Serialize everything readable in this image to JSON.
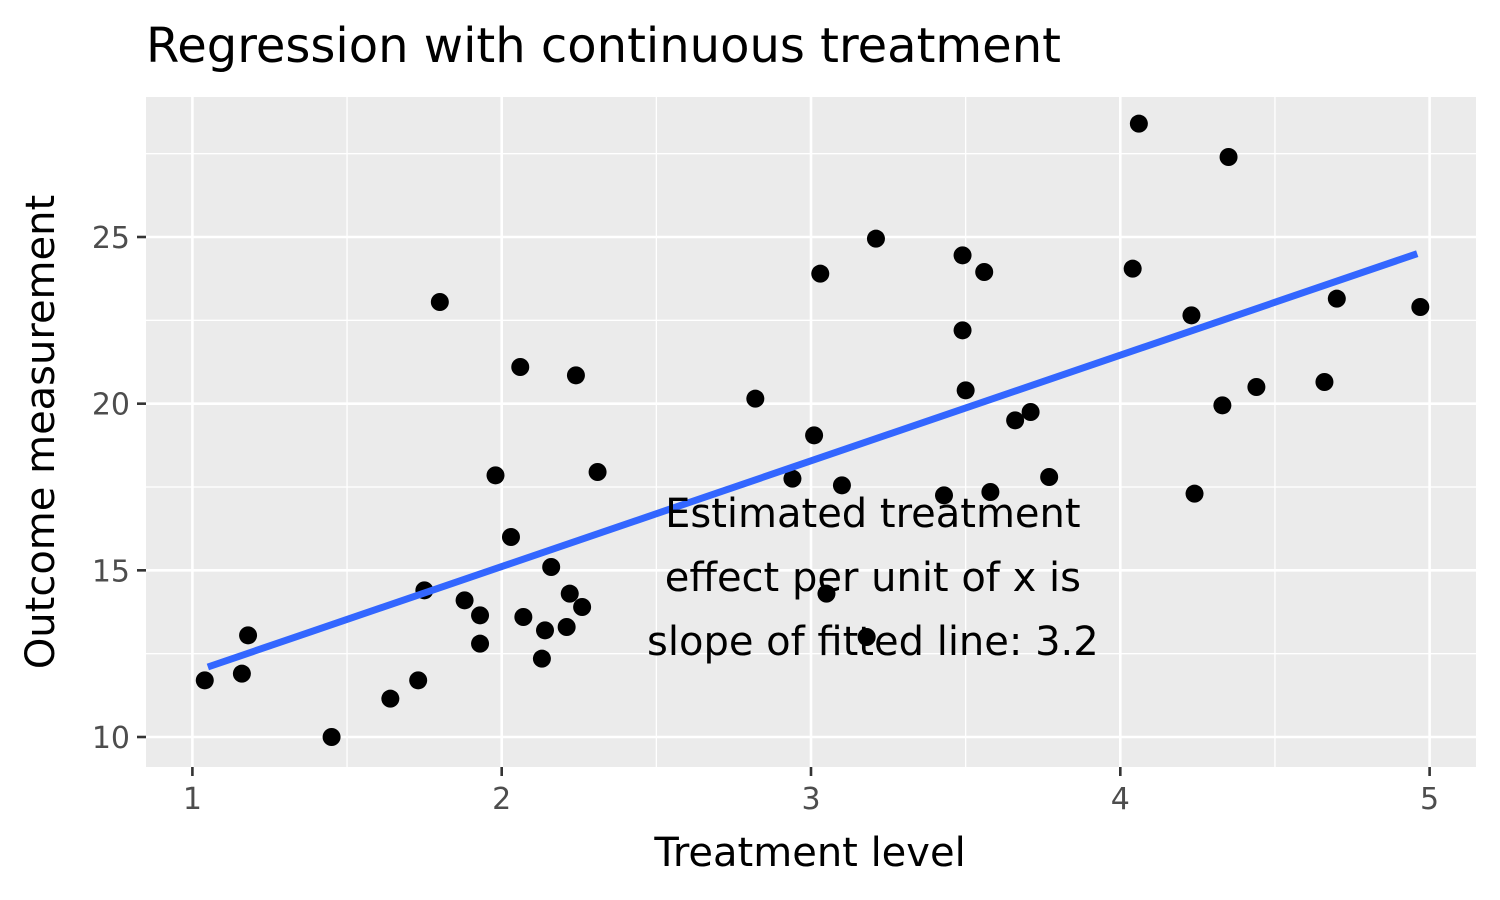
{
  "chart_data": {
    "type": "scatter",
    "title": "Regression with continuous treatment",
    "xlabel": "Treatment level",
    "ylabel": "Outcome measurement",
    "xlim": [
      0.85,
      5.15
    ],
    "ylim": [
      9.1,
      29.2
    ],
    "x_ticks": [
      1,
      2,
      3,
      4,
      5
    ],
    "y_ticks": [
      10,
      15,
      20,
      25
    ],
    "x_minor": [
      1.5,
      2.5,
      3.5,
      4.5
    ],
    "y_minor": [
      12.5,
      17.5,
      22.5,
      27.5
    ],
    "grid": true,
    "annotation_lines": [
      "Estimated treatment",
      "effect per unit of x is",
      "slope of fitted line:  3.2"
    ],
    "annotation_at": {
      "x": 3.2,
      "y": 14.8
    },
    "fit_line": {
      "x": [
        1.05,
        4.96
      ],
      "y": [
        12.1,
        24.5
      ],
      "color": "#3366ff"
    },
    "point_color": "#000000",
    "panel_color": "#ebebeb",
    "points": [
      {
        "x": 1.04,
        "y": 11.7
      },
      {
        "x": 1.16,
        "y": 11.9
      },
      {
        "x": 1.18,
        "y": 13.05
      },
      {
        "x": 1.45,
        "y": 10.0
      },
      {
        "x": 1.64,
        "y": 11.15
      },
      {
        "x": 1.73,
        "y": 11.7
      },
      {
        "x": 1.75,
        "y": 14.4
      },
      {
        "x": 1.8,
        "y": 23.05
      },
      {
        "x": 1.88,
        "y": 14.1
      },
      {
        "x": 1.93,
        "y": 12.8
      },
      {
        "x": 1.93,
        "y": 13.65
      },
      {
        "x": 1.98,
        "y": 17.85
      },
      {
        "x": 2.03,
        "y": 16.0
      },
      {
        "x": 2.06,
        "y": 21.1
      },
      {
        "x": 2.07,
        "y": 13.6
      },
      {
        "x": 2.13,
        "y": 12.35
      },
      {
        "x": 2.14,
        "y": 13.2
      },
      {
        "x": 2.16,
        "y": 15.1
      },
      {
        "x": 2.21,
        "y": 13.3
      },
      {
        "x": 2.22,
        "y": 14.3
      },
      {
        "x": 2.24,
        "y": 20.85
      },
      {
        "x": 2.26,
        "y": 13.9
      },
      {
        "x": 2.31,
        "y": 17.95
      },
      {
        "x": 2.82,
        "y": 20.15
      },
      {
        "x": 2.94,
        "y": 17.75
      },
      {
        "x": 3.01,
        "y": 19.05
      },
      {
        "x": 3.03,
        "y": 23.9
      },
      {
        "x": 3.05,
        "y": 14.3
      },
      {
        "x": 3.1,
        "y": 17.55
      },
      {
        "x": 3.18,
        "y": 13.0
      },
      {
        "x": 3.21,
        "y": 24.95
      },
      {
        "x": 3.43,
        "y": 17.25
      },
      {
        "x": 3.49,
        "y": 24.45
      },
      {
        "x": 3.49,
        "y": 22.2
      },
      {
        "x": 3.5,
        "y": 20.4
      },
      {
        "x": 3.56,
        "y": 23.95
      },
      {
        "x": 3.58,
        "y": 17.35
      },
      {
        "x": 3.66,
        "y": 19.5
      },
      {
        "x": 3.71,
        "y": 19.75
      },
      {
        "x": 3.77,
        "y": 17.8
      },
      {
        "x": 4.04,
        "y": 24.05
      },
      {
        "x": 4.06,
        "y": 28.4
      },
      {
        "x": 4.23,
        "y": 22.65
      },
      {
        "x": 4.24,
        "y": 17.3
      },
      {
        "x": 4.33,
        "y": 19.95
      },
      {
        "x": 4.35,
        "y": 27.4
      },
      {
        "x": 4.44,
        "y": 20.5
      },
      {
        "x": 4.66,
        "y": 20.65
      },
      {
        "x": 4.7,
        "y": 23.15
      },
      {
        "x": 4.97,
        "y": 22.9
      }
    ]
  }
}
